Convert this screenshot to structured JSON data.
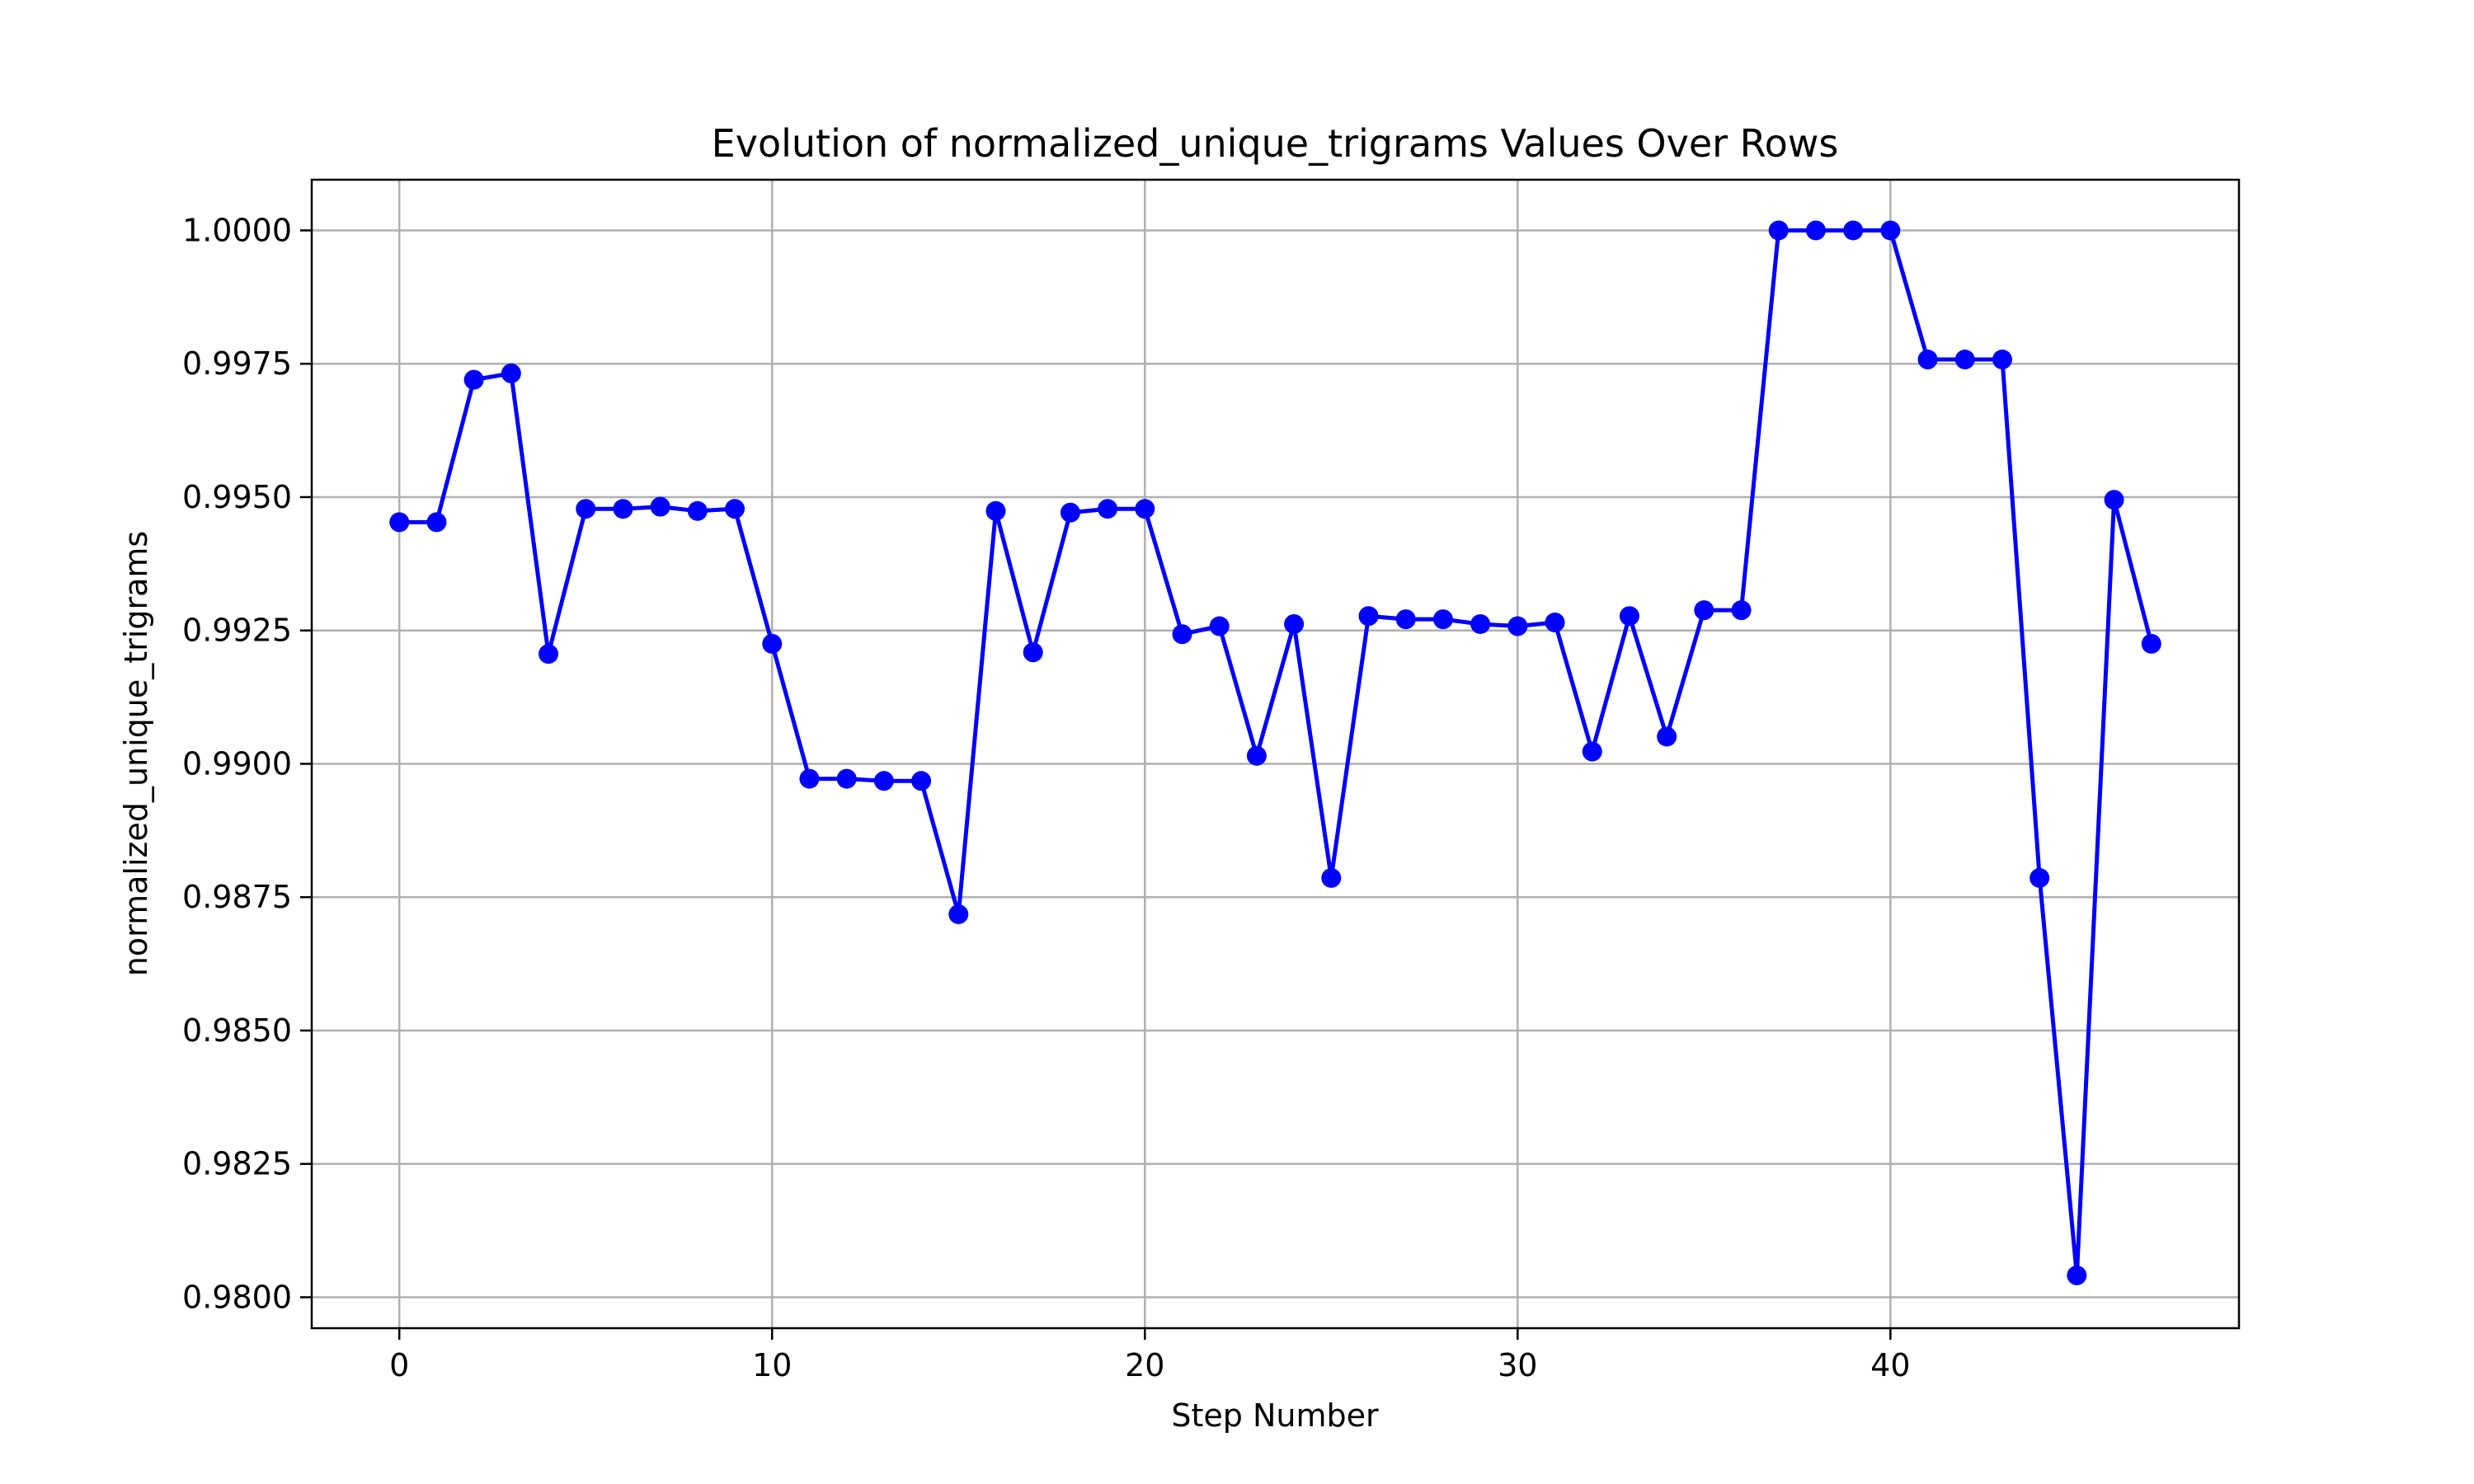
{
  "chart_data": {
    "type": "line",
    "title": "Evolution of normalized_unique_trigrams Values Over Rows",
    "xlabel": "Step Number",
    "ylabel": "normalized_unique_trigrams",
    "xlim": [
      -2.35,
      49.35
    ],
    "ylim": [
      0.97942,
      1.00095
    ],
    "x_ticks": [
      0,
      10,
      20,
      30,
      40
    ],
    "x_tick_labels": [
      "0",
      "10",
      "20",
      "30",
      "40"
    ],
    "y_ticks": [
      0.98,
      0.9825,
      0.985,
      0.9875,
      0.99,
      0.9925,
      0.995,
      0.9975,
      1.0
    ],
    "y_tick_labels": [
      "0.9800",
      "0.9825",
      "0.9850",
      "0.9875",
      "0.9900",
      "0.9925",
      "0.9950",
      "0.9975",
      "1.0000"
    ],
    "grid": true,
    "marker": "circle",
    "color": "#0000ff",
    "series": [
      {
        "x": [
          0,
          1,
          2,
          3,
          4,
          5,
          6,
          7,
          8,
          9,
          10,
          11,
          12,
          13,
          14,
          15,
          16,
          17,
          18,
          19,
          20,
          21,
          22,
          23,
          24,
          25,
          26,
          27,
          28,
          29,
          30,
          31,
          32,
          33,
          34,
          35,
          36,
          37,
          38,
          39,
          40,
          41,
          42,
          43,
          44,
          45,
          46,
          47
        ],
        "values": [
          0.99453,
          0.99453,
          0.9972,
          0.99732,
          0.99206,
          0.99478,
          0.99478,
          0.99482,
          0.99474,
          0.99478,
          0.99225,
          0.98972,
          0.98972,
          0.98968,
          0.98968,
          0.98718,
          0.99474,
          0.99209,
          0.99471,
          0.99478,
          0.99478,
          0.99243,
          0.99258,
          0.99015,
          0.99262,
          0.98786,
          0.99277,
          0.99271,
          0.99271,
          0.99262,
          0.99258,
          0.99265,
          0.99023,
          0.99277,
          0.99051,
          0.99288,
          0.99288,
          1.0,
          1.0,
          1.0,
          1.0,
          0.99758,
          0.99758,
          0.99758,
          0.98786,
          0.98041,
          0.99495,
          0.99225
        ]
      }
    ]
  }
}
